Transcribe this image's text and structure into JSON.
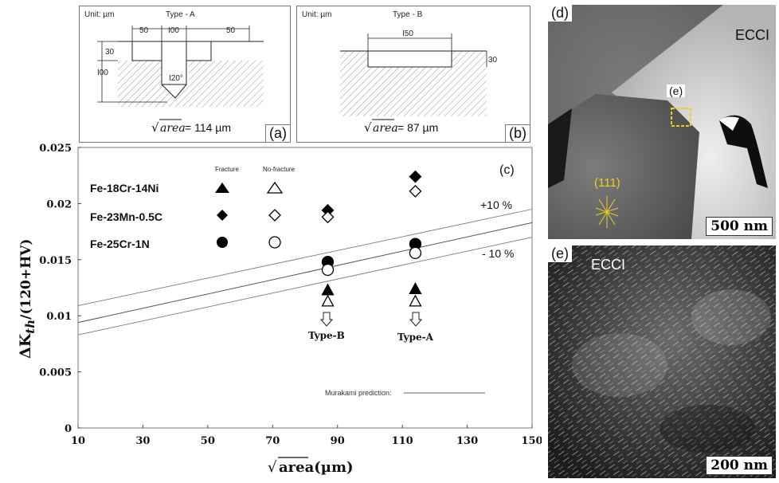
{
  "panel_a": {
    "label": "(a)",
    "unit": "Unit: µm",
    "type": "Type - A",
    "dim_left": "50",
    "dim_mid": "I00",
    "dim_right": "50",
    "dim_depth_shallow": "30",
    "dim_depth_total": "I00",
    "angle": "I20°",
    "area_prefix": "area",
    "area_value": "= 114 µm"
  },
  "panel_b": {
    "label": "(b)",
    "unit": "Unit: µm",
    "type": "Type - B",
    "dim_width": "I50",
    "dim_depth": "30",
    "area_prefix": "area",
    "area_value": "= 87 µm"
  },
  "panel_c": {
    "label": "(c)",
    "legend_header_fracture": "Fracture",
    "legend_header_nofracture": "No-fracture",
    "legend": [
      {
        "name": "Fe-18Cr-14Ni",
        "marker": "triangle"
      },
      {
        "name": "Fe-23Mn-0.5C",
        "marker": "diamond"
      },
      {
        "name": "Fe-25Cr-1N",
        "marker": "circle"
      }
    ],
    "band_plus": "+10 %",
    "band_minus": "- 10 %",
    "murakami_label": "Murakami prediction:",
    "arrow_b_label": "Type-B",
    "arrow_a_label": "Type-A"
  },
  "chart_data": {
    "type": "scatter",
    "ylabel": "ΔKth/(120+HV)",
    "xlabel": "√area(µm)",
    "xlim": [
      10,
      150
    ],
    "ylim": [
      0,
      0.025
    ],
    "xticks": [
      "10",
      "30",
      "50",
      "70",
      "90",
      "110",
      "130",
      "150"
    ],
    "yticks": [
      "0",
      "0.005",
      "0.01",
      "0.015",
      "0.02",
      "0.025"
    ],
    "grid": false,
    "series": [
      {
        "name": "Fe-18Cr-14Ni",
        "marker": "triangle",
        "filled": true,
        "x": [
          87,
          114
        ],
        "y": [
          0.0123,
          0.0124
        ]
      },
      {
        "name": "Fe-18Cr-14Ni",
        "marker": "triangle",
        "filled": false,
        "x": [
          87,
          114
        ],
        "y": [
          0.0113,
          0.0113
        ]
      },
      {
        "name": "Fe-23Mn-0.5C",
        "marker": "diamond",
        "filled": true,
        "x": [
          87,
          114
        ],
        "y": [
          0.0194,
          0.0224
        ]
      },
      {
        "name": "Fe-23Mn-0.5C",
        "marker": "diamond",
        "filled": false,
        "x": [
          87,
          114
        ],
        "y": [
          0.0188,
          0.0211
        ]
      },
      {
        "name": "Fe-25Cr-1N",
        "marker": "circle",
        "filled": true,
        "x": [
          87,
          114
        ],
        "y": [
          0.0148,
          0.0164
        ]
      },
      {
        "name": "Fe-25Cr-1N",
        "marker": "circle",
        "filled": false,
        "x": [
          87,
          114
        ],
        "y": [
          0.0141,
          0.0156
        ]
      }
    ],
    "lines": [
      {
        "name": "+10 %",
        "x": [
          10,
          150
        ],
        "y": [
          0.0109,
          0.0195
        ]
      },
      {
        "name": "Murakami prediction",
        "x": [
          10,
          150
        ],
        "y": [
          0.0094,
          0.0183
        ]
      },
      {
        "name": "- 10 %",
        "x": [
          10,
          150
        ],
        "y": [
          0.0083,
          0.017
        ]
      }
    ]
  },
  "panel_d": {
    "label": "(d)",
    "mode": "ECCI",
    "box_label": "(e)",
    "plane": "(111)",
    "scale": "500 nm"
  },
  "panel_e": {
    "label": "(e)",
    "mode": "ECCI",
    "scale": "200 nm"
  },
  "colors": {
    "annotation_yellow": "#e8d21c",
    "hatch": "#999999"
  }
}
